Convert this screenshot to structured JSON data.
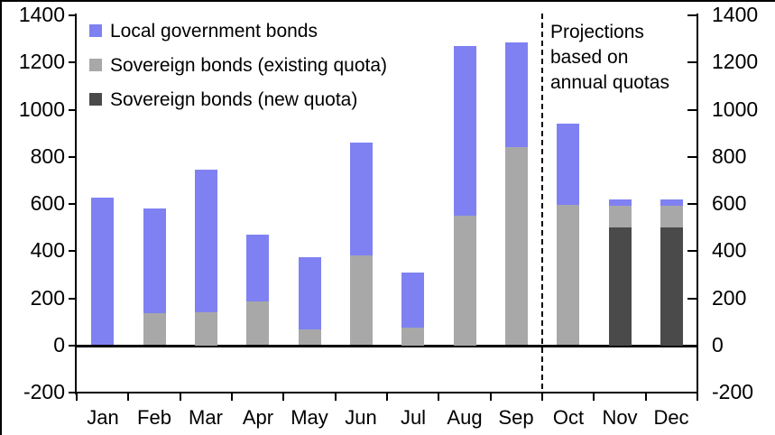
{
  "chart_data": {
    "type": "bar",
    "stacked": true,
    "title": "",
    "xlabel": "",
    "ylabel": "",
    "categories": [
      "Jan",
      "Feb",
      "Mar",
      "Apr",
      "May",
      "Jun",
      "Jul",
      "Aug",
      "Sep",
      "Oct",
      "Nov",
      "Dec"
    ],
    "series": [
      {
        "key": "sovereign-new-quota",
        "name": "Sovereign bonds (new quota)",
        "color": "#4a4a4a",
        "values": [
          0,
          0,
          0,
          0,
          0,
          0,
          0,
          0,
          0,
          0,
          500,
          500
        ]
      },
      {
        "key": "sovereign-existing-quota",
        "name": "Sovereign bonds (existing quota)",
        "color": "#a8a8a8",
        "values": [
          0,
          135,
          140,
          185,
          70,
          380,
          75,
          550,
          840,
          595,
          95,
          95
        ]
      },
      {
        "key": "local-government-bonds",
        "name": "Local government bonds",
        "color": "#7f81f2",
        "values": [
          625,
          445,
          605,
          285,
          305,
          480,
          235,
          720,
          445,
          345,
          25,
          25
        ]
      }
    ],
    "totals": [
      625,
      580,
      745,
      470,
      375,
      860,
      310,
      1270,
      1285,
      940,
      620,
      620
    ],
    "legend": [
      {
        "label": "Local government bonds",
        "color": "#7f81f2"
      },
      {
        "label": "Sovereign bonds (existing quota)",
        "color": "#a8a8a8"
      },
      {
        "label": "Sovereign bonds (new quota)",
        "color": "#4a4a4a"
      }
    ],
    "ylim": [
      -200,
      1400
    ],
    "ytick_step": 200,
    "yticks": [
      1400,
      1200,
      1000,
      800,
      600,
      400,
      200,
      0,
      -200
    ],
    "dual_axis": true,
    "grid": false,
    "annotation": {
      "lines": [
        "Projections",
        "based on",
        "annual quotas"
      ],
      "divider_after_index": 9
    }
  }
}
